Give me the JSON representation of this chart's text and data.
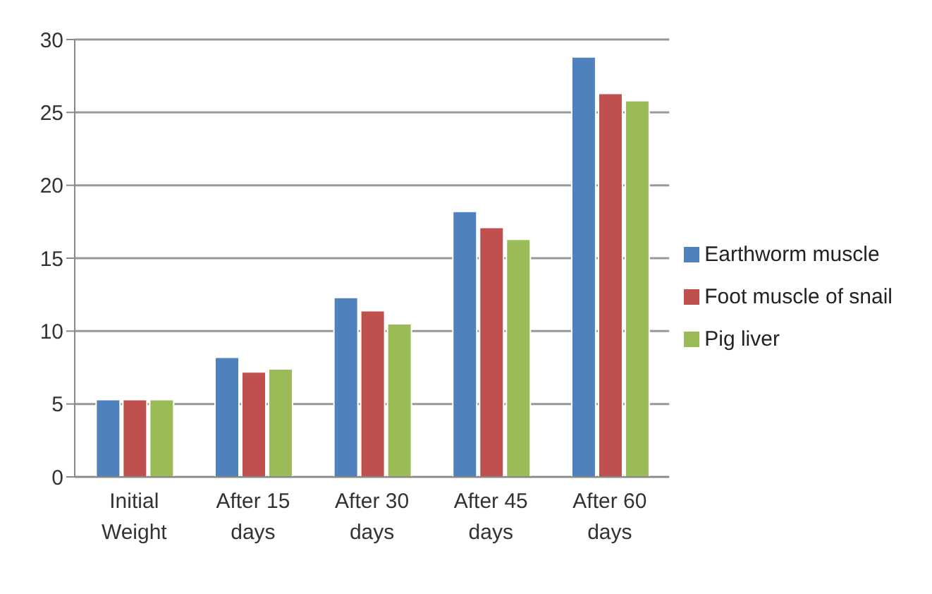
{
  "chart_data": {
    "type": "bar",
    "categories": [
      "Initial Weight",
      "After 15 days",
      "After 30 days",
      "After 45 days",
      "After 60 days"
    ],
    "series": [
      {
        "name": "Earthworm muscle",
        "color": "#4f81bd",
        "values": [
          5.3,
          8.2,
          12.3,
          18.2,
          28.8
        ]
      },
      {
        "name": "Foot muscle of snail",
        "color": "#c0504d",
        "values": [
          5.3,
          7.2,
          11.4,
          17.1,
          26.3
        ]
      },
      {
        "name": "Pig liver",
        "color": "#9bbb59",
        "values": [
          5.3,
          7.4,
          10.5,
          16.3,
          25.8
        ]
      }
    ],
    "ylim": [
      0,
      30
    ],
    "yticks": [
      0,
      5,
      10,
      15,
      20,
      25,
      30
    ],
    "grid": "y",
    "legend": "right"
  }
}
